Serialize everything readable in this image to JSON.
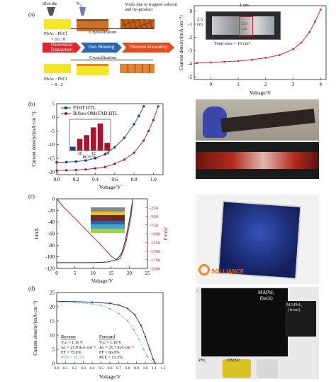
{
  "panel_a": {
    "label": "(a)",
    "slot_die": "Slot-die",
    "n2": "N",
    "n2_sub": "2",
    "voids_note": "Voids due to trapped solvent and by-product",
    "ratio_top": "PbAc",
    "ratio_top_rest": " : PbCl",
    "ratio_top_value": "= 10 : 0",
    "ratio_bottom": "PbAc",
    "ratio_bottom_rest": " : PbCl",
    "ratio_bottom_value": "= 8 : 2",
    "crystallization_top": "Crystallization",
    "crystallization_bottom": "Crystallization",
    "step_1": "Perovskite Deposition",
    "step_2": "Gas Blowing",
    "step_3": "Thermal Annealing",
    "device_dim_1": "1 cm",
    "device_dim_2": "2.5 cm",
    "device_dim_3": "2.5 cm",
    "total_area": "Total area = 10 cm²",
    "ylabel": "Current density/(mA·cm⁻²)",
    "xlabel": "Voltage/V"
  },
  "panel_b": {
    "label": "(b)",
    "legend_1": "P3HT HTL",
    "legend_2": "Bifluo-OMeTAD HTL",
    "inset_xlabel": "PCE/%",
    "ylabel": "Current density/(mA·cm⁻²)",
    "xlabel": "Voltage/V"
  },
  "panel_c": {
    "label": "(c)",
    "ylabel_left": "I/mA",
    "ylabel_right": "P/mW",
    "xlabel": "Voltage/V",
    "logo_text": "SOLLIANCE"
  },
  "panel_d": {
    "label": "(d)",
    "ylabel": "Current density/(mA·cm⁻²)",
    "xlabel": "Voltage/V",
    "reverse_title": "Reverse",
    "reverse_voc": "Vₒc = 1.11 V",
    "reverse_jsc": "Jₛc = 21.9 mA·cm⁻²",
    "reverse_ff": "FF = 75.6%",
    "reverse_pce": "PCE = 18.3%",
    "forward_title": "Forward",
    "forward_voc": "Vₒc = 1.10 V",
    "forward_jsc": "Jₛc = 21.7 mA·cm⁻²",
    "forward_ff": "FF = 66.0%",
    "forward_pce": "PCE = 15.3%",
    "photo_back": "MAPbI₃",
    "photo_back_2": "(back)",
    "photo_front": "MAPbI₃",
    "photo_front_2": "(front)",
    "photo_solvent": "DMSO",
    "photo_pbi2": "PbI₂",
    "watermark": "KRICT"
  },
  "chart_data": [
    {
      "type": "line",
      "panel": "a",
      "xlabel": "Voltage/V",
      "ylabel": "Current density/(mA·cm⁻²)",
      "xlim": [
        -0.6,
        4.2
      ],
      "ylim": [
        -5.2,
        0.4
      ],
      "xticks": [
        0,
        1,
        2,
        3,
        4
      ],
      "yticks": [
        0,
        -1,
        -2,
        -3,
        -4,
        -5
      ],
      "series": [
        {
          "color": "#e0242d",
          "x": [
            -0.5,
            0,
            0.5,
            1,
            1.5,
            2,
            2.5,
            3,
            3.3,
            3.6,
            3.8,
            4.0
          ],
          "y": [
            -3.95,
            -3.9,
            -3.85,
            -3.8,
            -3.7,
            -3.55,
            -3.35,
            -2.9,
            -2.4,
            -1.6,
            -0.8,
            0.1
          ]
        }
      ]
    },
    {
      "type": "line",
      "panel": "b",
      "xlabel": "Voltage/V",
      "ylabel": "Current density/(mA·cm⁻²)",
      "xlim": [
        0,
        1.1
      ],
      "ylim": [
        -21,
        5
      ],
      "xticks": [
        0.0,
        0.2,
        0.4,
        0.6,
        0.8,
        1.0
      ],
      "yticks": [
        5,
        0,
        -5,
        -10,
        -15,
        -20
      ],
      "series": [
        {
          "name": "P3HT HTL",
          "color": "#1f3c8f",
          "x": [
            0,
            0.1,
            0.2,
            0.3,
            0.4,
            0.5,
            0.6,
            0.7,
            0.8,
            0.85,
            0.9
          ],
          "y": [
            -16.5,
            -16.4,
            -16.2,
            -15.8,
            -15.0,
            -13.5,
            -11.0,
            -7.5,
            -2.5,
            0.5,
            4.0
          ]
        },
        {
          "name": "Bifluo-OMeTAD HTL",
          "color": "#a3162b",
          "x": [
            0,
            0.1,
            0.2,
            0.3,
            0.4,
            0.5,
            0.6,
            0.7,
            0.8,
            0.9,
            0.95,
            1.0,
            1.05
          ],
          "y": [
            -19.5,
            -19.4,
            -19.3,
            -19.1,
            -18.7,
            -18.2,
            -17.0,
            -15.5,
            -13.0,
            -8.5,
            -5.0,
            -1.0,
            4.0
          ]
        }
      ],
      "inset": {
        "type": "bar",
        "xlabel": "PCE/%",
        "xticks": [
          10,
          12,
          14
        ],
        "categories": [
          "9",
          "10",
          "11",
          "12",
          "13",
          "14"
        ],
        "values": [
          1,
          3,
          4,
          6,
          7,
          2
        ],
        "colors": [
          "#1f3c8f",
          "#a3162b",
          "#a3162b",
          "#a3162b",
          "#a3162b",
          "#a3162b"
        ]
      }
    },
    {
      "type": "line",
      "panel": "c",
      "xlabel": "Voltage/V",
      "ylabel": "I/mA",
      "ylabel_right": "P/mW",
      "xlim": [
        0,
        25
      ],
      "ylim_left": [
        -120,
        0
      ],
      "ylim_right": [
        -2000,
        0
      ],
      "xticks": [
        0,
        5,
        10,
        15,
        20,
        25
      ],
      "yticks_left": [
        0,
        -20,
        -40,
        -60,
        -80,
        -100,
        -120
      ],
      "yticks_right": [
        -250,
        -500,
        -750,
        -1000,
        -1250,
        -1500,
        -1750,
        -2000
      ],
      "series": [
        {
          "name": "I",
          "color": "#222222",
          "x": [
            0,
            5,
            10,
            14,
            16,
            17,
            18,
            19,
            20,
            21
          ],
          "y": [
            -110,
            -110,
            -110,
            -109,
            -106,
            -102,
            -92,
            -70,
            -38,
            0
          ]
        },
        {
          "name": "P",
          "color": "#b12a2a",
          "x": [
            0,
            2,
            5,
            8,
            11,
            13,
            15,
            16.5,
            17.5,
            19,
            20.5,
            21
          ],
          "y": [
            0,
            -250,
            -560,
            -880,
            -1200,
            -1420,
            -1650,
            -1760,
            -1720,
            -1300,
            -500,
            0
          ]
        }
      ]
    },
    {
      "type": "line",
      "panel": "d",
      "xlabel": "Voltage/V",
      "ylabel": "Current density/(mA·cm⁻²)",
      "xlim": [
        0,
        1.2
      ],
      "ylim": [
        0,
        25
      ],
      "xticks": [
        0.0,
        0.1,
        0.2,
        0.3,
        0.4,
        0.5,
        0.6,
        0.7,
        0.8,
        0.9,
        1.0,
        1.1,
        1.2
      ],
      "yticks": [
        0,
        5,
        10,
        15,
        20,
        25
      ],
      "series": [
        {
          "name": "Reverse",
          "color": "#1f3c8f",
          "x": [
            0,
            0.2,
            0.4,
            0.6,
            0.7,
            0.8,
            0.88,
            0.95,
            1.0,
            1.05,
            1.09,
            1.11
          ],
          "y": [
            21.9,
            21.8,
            21.6,
            21.2,
            20.6,
            19.4,
            17.2,
            13.5,
            9.5,
            5.0,
            1.5,
            0
          ]
        },
        {
          "name": "Forward",
          "color": "#7fb4c9",
          "x": [
            0,
            0.2,
            0.4,
            0.5,
            0.6,
            0.7,
            0.8,
            0.87,
            0.93,
            0.98,
            1.02,
            1.1
          ],
          "y": [
            21.7,
            21.5,
            21.0,
            20.4,
            19.3,
            17.6,
            15.0,
            12.0,
            8.5,
            5.0,
            2.5,
            0
          ]
        }
      ]
    }
  ]
}
